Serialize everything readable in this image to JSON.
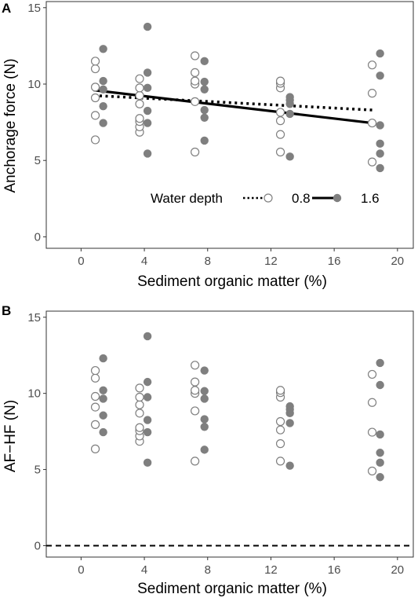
{
  "chart_data": [
    {
      "type": "scatter",
      "panel_label": "A",
      "xlabel": "Sediment organic matter (%)",
      "ylabel": "Anchorage force (N)",
      "xlim": [
        -2.2,
        21
      ],
      "ylim": [
        -0.75,
        15.4
      ],
      "xticks": [
        0,
        4,
        8,
        12,
        16,
        20
      ],
      "yticks": [
        0,
        5,
        10,
        15
      ],
      "grid": false,
      "legend": {
        "title": "Water depth",
        "position": "bottom-right",
        "entries": [
          "0.8",
          "1.6"
        ]
      },
      "series": [
        {
          "name": "0.8",
          "marker": "open-circle",
          "line": "dotted",
          "fit": [
            [
              0.8,
              9.25
            ],
            [
              18.4,
              8.3
            ]
          ],
          "points": [
            [
              0.9,
              6.35
            ],
            [
              0.9,
              7.95
            ],
            [
              0.9,
              9.1
            ],
            [
              0.9,
              9.8
            ],
            [
              0.9,
              11.0
            ],
            [
              0.9,
              11.5
            ],
            [
              3.7,
              6.85
            ],
            [
              3.7,
              7.2
            ],
            [
              3.7,
              7.55
            ],
            [
              3.7,
              7.75
            ],
            [
              3.7,
              8.7
            ],
            [
              3.7,
              9.25
            ],
            [
              3.7,
              9.75
            ],
            [
              3.7,
              10.35
            ],
            [
              7.2,
              5.55
            ],
            [
              7.2,
              8.85
            ],
            [
              7.2,
              10.0
            ],
            [
              7.2,
              10.2
            ],
            [
              7.2,
              10.75
            ],
            [
              7.2,
              11.85
            ],
            [
              12.6,
              5.55
            ],
            [
              12.6,
              6.7
            ],
            [
              12.6,
              7.6
            ],
            [
              12.6,
              8.15
            ],
            [
              12.6,
              9.75
            ],
            [
              12.6,
              10.05
            ],
            [
              12.6,
              10.2
            ],
            [
              18.4,
              4.9
            ],
            [
              18.4,
              7.45
            ],
            [
              18.4,
              9.4
            ],
            [
              18.4,
              11.25
            ]
          ]
        },
        {
          "name": "1.6",
          "marker": "filled-circle",
          "line": "solid",
          "fit": [
            [
              0.8,
              9.6
            ],
            [
              18.4,
              7.45
            ]
          ],
          "points": [
            [
              1.4,
              7.45
            ],
            [
              1.4,
              8.55
            ],
            [
              1.4,
              9.65
            ],
            [
              1.4,
              10.2
            ],
            [
              1.4,
              12.3
            ],
            [
              4.2,
              5.45
            ],
            [
              4.2,
              7.45
            ],
            [
              4.2,
              8.25
            ],
            [
              4.2,
              9.75
            ],
            [
              4.2,
              10.75
            ],
            [
              4.2,
              13.75
            ],
            [
              7.8,
              6.3
            ],
            [
              7.8,
              7.8
            ],
            [
              7.8,
              8.3
            ],
            [
              7.8,
              9.65
            ],
            [
              7.8,
              10.15
            ],
            [
              7.8,
              11.5
            ],
            [
              13.2,
              5.25
            ],
            [
              13.2,
              8.05
            ],
            [
              13.2,
              8.7
            ],
            [
              13.2,
              8.95
            ],
            [
              13.2,
              9.15
            ],
            [
              18.9,
              4.5
            ],
            [
              18.9,
              5.45
            ],
            [
              18.9,
              6.1
            ],
            [
              18.9,
              7.3
            ],
            [
              18.9,
              10.55
            ],
            [
              18.9,
              12.0
            ]
          ]
        }
      ]
    },
    {
      "type": "scatter",
      "panel_label": "B",
      "xlabel": "Sediment organic matter (%)",
      "ylabel": "AF−HF (N)",
      "xlim": [
        -2.2,
        21
      ],
      "ylim": [
        -0.75,
        15.4
      ],
      "xticks": [
        0,
        4,
        8,
        12,
        16,
        20
      ],
      "yticks": [
        0,
        5,
        10,
        15
      ],
      "grid": false,
      "reference_line": {
        "y": 0,
        "style": "dashed"
      },
      "series": [
        {
          "name": "0.8",
          "marker": "open-circle",
          "points": [
            [
              0.9,
              6.35
            ],
            [
              0.9,
              7.95
            ],
            [
              0.9,
              9.1
            ],
            [
              0.9,
              9.8
            ],
            [
              0.9,
              11.0
            ],
            [
              0.9,
              11.5
            ],
            [
              3.7,
              6.85
            ],
            [
              3.7,
              7.2
            ],
            [
              3.7,
              7.55
            ],
            [
              3.7,
              7.75
            ],
            [
              3.7,
              8.7
            ],
            [
              3.7,
              9.25
            ],
            [
              3.7,
              9.75
            ],
            [
              3.7,
              10.35
            ],
            [
              7.2,
              5.55
            ],
            [
              7.2,
              8.85
            ],
            [
              7.2,
              10.0
            ],
            [
              7.2,
              10.2
            ],
            [
              7.2,
              10.75
            ],
            [
              7.2,
              11.85
            ],
            [
              12.6,
              5.55
            ],
            [
              12.6,
              6.7
            ],
            [
              12.6,
              7.6
            ],
            [
              12.6,
              8.15
            ],
            [
              12.6,
              9.75
            ],
            [
              12.6,
              10.05
            ],
            [
              12.6,
              10.2
            ],
            [
              18.4,
              4.9
            ],
            [
              18.4,
              7.45
            ],
            [
              18.4,
              9.4
            ],
            [
              18.4,
              11.25
            ]
          ]
        },
        {
          "name": "1.6",
          "marker": "filled-circle",
          "points": [
            [
              1.4,
              7.45
            ],
            [
              1.4,
              8.55
            ],
            [
              1.4,
              9.65
            ],
            [
              1.4,
              10.2
            ],
            [
              1.4,
              12.3
            ],
            [
              4.2,
              5.45
            ],
            [
              4.2,
              7.45
            ],
            [
              4.2,
              8.25
            ],
            [
              4.2,
              9.75
            ],
            [
              4.2,
              10.75
            ],
            [
              4.2,
              13.75
            ],
            [
              7.8,
              6.3
            ],
            [
              7.8,
              7.8
            ],
            [
              7.8,
              8.3
            ],
            [
              7.8,
              9.65
            ],
            [
              7.8,
              10.15
            ],
            [
              7.8,
              11.5
            ],
            [
              13.2,
              5.25
            ],
            [
              13.2,
              8.05
            ],
            [
              13.2,
              8.7
            ],
            [
              13.2,
              8.95
            ],
            [
              13.2,
              9.15
            ],
            [
              18.9,
              4.5
            ],
            [
              18.9,
              5.45
            ],
            [
              18.9,
              6.1
            ],
            [
              18.9,
              7.3
            ],
            [
              18.9,
              10.55
            ],
            [
              18.9,
              12.0
            ]
          ]
        }
      ]
    }
  ],
  "colors": {
    "filled_point": "#7f7f7f",
    "open_point_stroke": "#7f7f7f",
    "fit_line": "#000000",
    "panel_border": "#333333",
    "tick_text": "#4d4d4d"
  }
}
